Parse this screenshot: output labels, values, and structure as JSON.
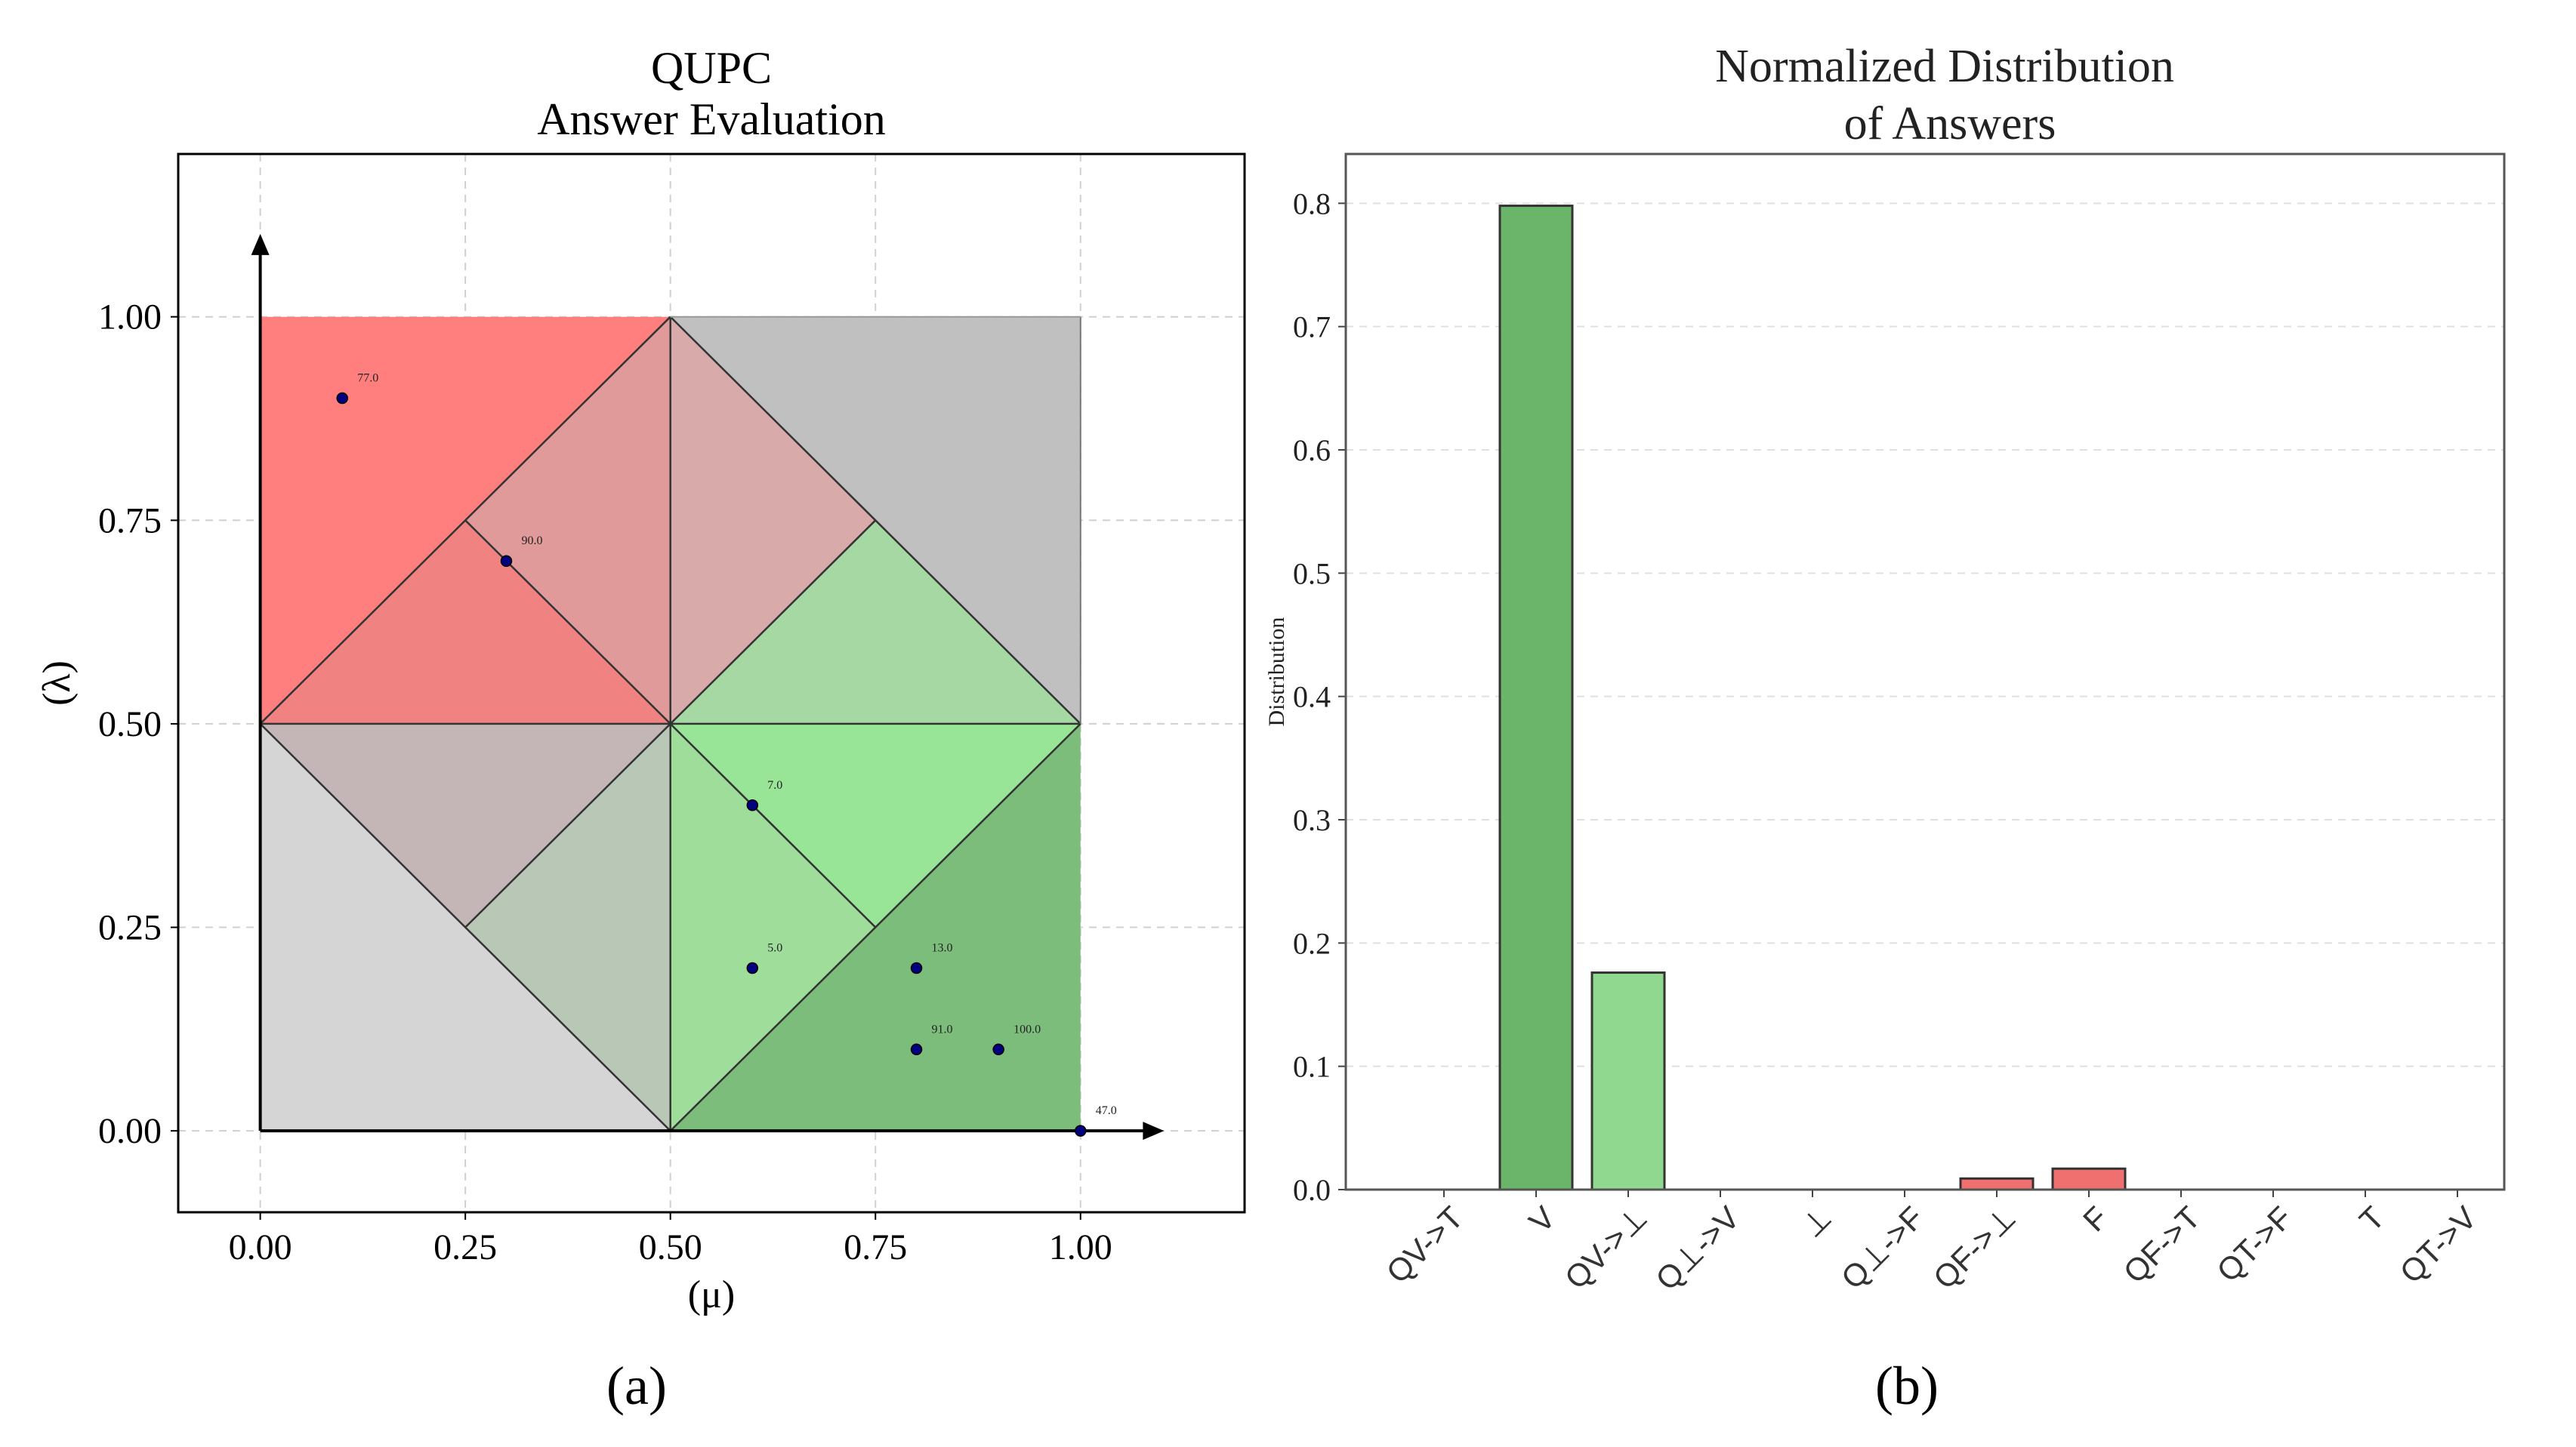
{
  "figure_labels": {
    "a": "(a)",
    "b": "(b)"
  },
  "chart_data": [
    {
      "type": "scatter",
      "title": "QUPC",
      "subtitle": "Answer Evaluation",
      "xlabel": "(μ)",
      "ylabel": "(λ)",
      "xlim": [
        -0.1,
        1.2
      ],
      "ylim": [
        -0.1,
        1.2
      ],
      "grid": true,
      "x_ticks": [
        "0.00",
        "0.25",
        "0.50",
        "0.75",
        "1.00"
      ],
      "y_ticks": [
        "0.00",
        "0.25",
        "0.50",
        "0.75",
        "1.00"
      ],
      "region_colors": {
        "false_strong": "#ff7f7f",
        "false_medium": "#e09a9a",
        "false_soft": "#d8aaaa",
        "false_weak": "#f08282",
        "gray_rose": "#c4b6b6",
        "gray_green": "#b8c7b6",
        "gray_dark": "#c0c0c0",
        "gray_light": "#d5d5d5",
        "true_light": "#a6d8a3",
        "true_bright": "#98e597",
        "true_mid": "#9fdd9b",
        "true_strong": "#7dbd7b"
      },
      "point_color": "#000080",
      "points": [
        {
          "mu": 0.1,
          "lambda": 0.9,
          "label": "77.0"
        },
        {
          "mu": 0.3,
          "lambda": 0.7,
          "label": "90.0"
        },
        {
          "mu": 0.6,
          "lambda": 0.4,
          "label": "7.0"
        },
        {
          "mu": 0.6,
          "lambda": 0.2,
          "label": "5.0"
        },
        {
          "mu": 0.8,
          "lambda": 0.2,
          "label": "13.0"
        },
        {
          "mu": 0.8,
          "lambda": 0.1,
          "label": "91.0"
        },
        {
          "mu": 0.9,
          "lambda": 0.1,
          "label": "100.0"
        },
        {
          "mu": 1.0,
          "lambda": 0.0,
          "label": "47.0"
        }
      ]
    },
    {
      "type": "bar",
      "title": "Normalized Distribution",
      "subtitle": "of Answers",
      "xlabel": "",
      "ylabel": "Distribution",
      "ylim": [
        0,
        0.84
      ],
      "grid": true,
      "y_ticks": [
        "0.0",
        "0.1",
        "0.2",
        "0.3",
        "0.4",
        "0.5",
        "0.6",
        "0.7",
        "0.8"
      ],
      "categories": [
        "QV->T",
        "V",
        "QV->⊥",
        "Q⊥->V",
        "⊥",
        "Q⊥->F",
        "QF->⊥",
        "F",
        "QF->T",
        "QT->F",
        "T",
        "QT->V"
      ],
      "values": [
        0.0,
        0.798,
        0.176,
        0.0,
        0.0,
        0.0,
        0.009,
        0.017,
        0.0,
        0.0,
        0.0,
        0.0
      ],
      "bar_colors": [
        "#6aa86a",
        "#6bb56b",
        "#90d890",
        "#6aa86a",
        "#6aa86a",
        "#6aa86a",
        "#f07070",
        "#f07070",
        "#6aa86a",
        "#6aa86a",
        "#6aa86a",
        "#6aa86a"
      ]
    }
  ]
}
